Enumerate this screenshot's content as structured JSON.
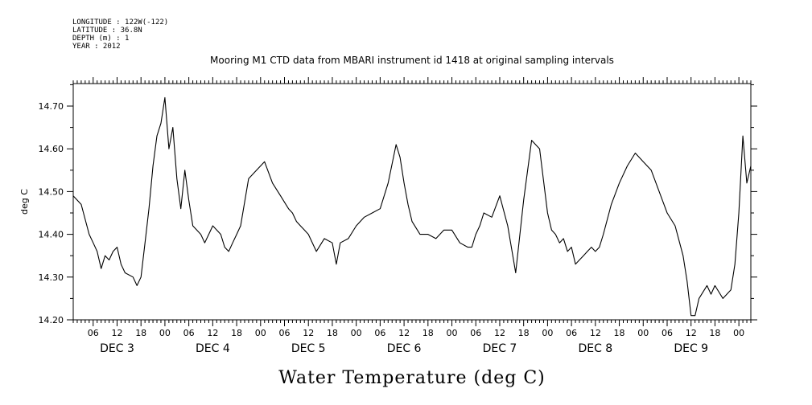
{
  "meta_lines": [
    "LONGITUDE : 122W(-122)",
    "LATITUDE : 36.8N",
    "DEPTH (m) : 1",
    "YEAR : 2012"
  ],
  "chart_data": {
    "type": "line",
    "title": "Mooring M1 CTD data from MBARI instrument id 1418 at original sampling intervals",
    "xlabel": "Water Temperature (deg C)",
    "ylabel": "deg C",
    "ylim": [
      14.2,
      14.75
    ],
    "yticks": [
      14.2,
      14.3,
      14.4,
      14.5,
      14.6,
      14.7
    ],
    "ytick_labels": [
      "14.20",
      "14.30",
      "14.40",
      "14.50",
      "14.60",
      "14.70"
    ],
    "xlim_hours": [
      1,
      171
    ],
    "hour_tick_labels": [
      "06",
      "12",
      "18",
      "00",
      "06",
      "12",
      "18",
      "00",
      "06",
      "12",
      "18",
      "00",
      "06",
      "12",
      "18",
      "00",
      "06",
      "12",
      "18",
      "00",
      "06",
      "12",
      "18",
      "00",
      "06",
      "12",
      "18",
      "00"
    ],
    "day_labels": [
      "DEC  3",
      "DEC  4",
      "DEC  5",
      "DEC  6",
      "DEC  7",
      "DEC  8",
      "DEC  9"
    ],
    "grid": false,
    "series": [
      {
        "x_hours": [
          1,
          3,
          5,
          6,
          7,
          8,
          9,
          10,
          11,
          12,
          13,
          14,
          16,
          17,
          18,
          19,
          20,
          21,
          22,
          23,
          24,
          25,
          26,
          27,
          28,
          29,
          30,
          31,
          32,
          33,
          34,
          35,
          36,
          37,
          38,
          39,
          40,
          41,
          42,
          43,
          45,
          47,
          49,
          51,
          53,
          55,
          56,
          57,
          58,
          59,
          60,
          62,
          64,
          66,
          67,
          68,
          70,
          72,
          74,
          76,
          78,
          80,
          82,
          83,
          84,
          85,
          86,
          88,
          90,
          92,
          94,
          96,
          98,
          100,
          101,
          102,
          103,
          104,
          106,
          108,
          110,
          112,
          114,
          116,
          118,
          120,
          121,
          122,
          123,
          124,
          125,
          126,
          127,
          128,
          129,
          130,
          131,
          132,
          133,
          134,
          136,
          138,
          140,
          142,
          144,
          146,
          148,
          150,
          152,
          154,
          155,
          156,
          157,
          158,
          160,
          161,
          162,
          164,
          166,
          167,
          168,
          169,
          170,
          171
        ],
        "y": [
          14.49,
          14.47,
          14.4,
          14.38,
          14.36,
          14.32,
          14.35,
          14.34,
          14.36,
          14.37,
          14.33,
          14.31,
          14.3,
          14.28,
          14.3,
          14.38,
          14.46,
          14.56,
          14.63,
          14.66,
          14.72,
          14.6,
          14.65,
          14.53,
          14.46,
          14.55,
          14.48,
          14.42,
          14.41,
          14.4,
          14.38,
          14.4,
          14.42,
          14.41,
          14.4,
          14.37,
          14.36,
          14.38,
          14.4,
          14.42,
          14.53,
          14.55,
          14.57,
          14.52,
          14.49,
          14.46,
          14.45,
          14.43,
          14.42,
          14.41,
          14.4,
          14.36,
          14.39,
          14.38,
          14.33,
          14.38,
          14.39,
          14.42,
          14.44,
          14.45,
          14.46,
          14.52,
          14.61,
          14.58,
          14.52,
          14.47,
          14.43,
          14.4,
          14.4,
          14.39,
          14.41,
          14.41,
          14.38,
          14.37,
          14.37,
          14.4,
          14.42,
          14.45,
          14.44,
          14.49,
          14.42,
          14.31,
          14.48,
          14.62,
          14.6,
          14.45,
          14.41,
          14.4,
          14.38,
          14.39,
          14.36,
          14.37,
          14.33,
          14.34,
          14.35,
          14.36,
          14.37,
          14.36,
          14.37,
          14.4,
          14.47,
          14.52,
          14.56,
          14.59,
          14.57,
          14.55,
          14.5,
          14.45,
          14.42,
          14.35,
          14.29,
          14.21,
          14.21,
          14.25,
          14.28,
          14.26,
          14.28,
          14.25,
          14.27,
          14.33,
          14.45,
          14.63,
          14.52,
          14.56
        ]
      }
    ]
  }
}
